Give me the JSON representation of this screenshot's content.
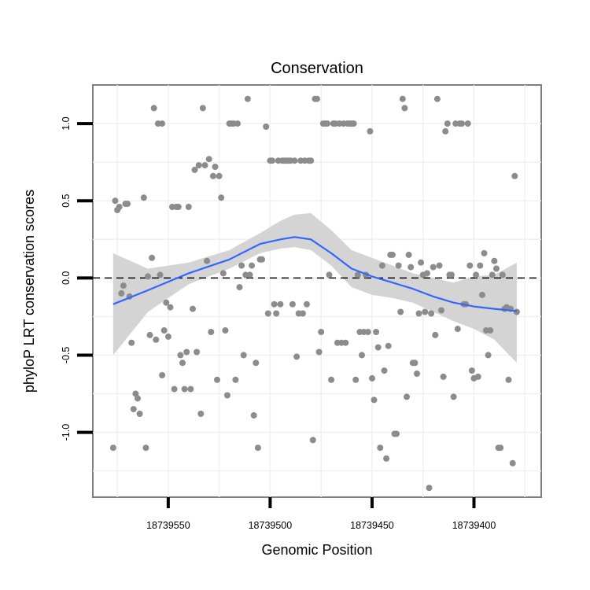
{
  "chart_data": {
    "type": "scatter",
    "title": "Conservation",
    "xlabel": "Genomic Position",
    "ylabel": "phyloP LRT conservation scores",
    "x_reversed": true,
    "xlim": [
      18739587,
      18739367
    ],
    "ylim": [
      -1.42,
      1.25
    ],
    "x_ticks": [
      18739550,
      18739500,
      18739450,
      18739400
    ],
    "x_tick_labels": [
      "18739550",
      "18739500",
      "18739450",
      "18739400"
    ],
    "y_ticks": [
      1.0,
      0.5,
      0.0,
      -0.5,
      -1.0
    ],
    "y_tick_labels": [
      "1.0",
      "0.5",
      "0.0",
      "-0.5",
      "-1.0"
    ],
    "reference_line": {
      "y": 0,
      "style": "dashed"
    },
    "grid": true,
    "point_color": "#8c8c8c",
    "smooth_color": "#3366ff",
    "band_color": "#d4d4d4",
    "points": [
      [
        18739577,
        -1.1
      ],
      [
        18739576,
        0.5
      ],
      [
        18739575,
        0.44
      ],
      [
        18739574,
        0.46
      ],
      [
        18739573,
        -0.1
      ],
      [
        18739572,
        -0.05
      ],
      [
        18739571,
        0.48
      ],
      [
        18739570,
        0.48
      ],
      [
        18739569,
        -0.12
      ],
      [
        18739568,
        -0.42
      ],
      [
        18739567,
        -0.85
      ],
      [
        18739566,
        -0.75
      ],
      [
        18739565,
        -0.78
      ],
      [
        18739564,
        -0.88
      ],
      [
        18739562,
        0.52
      ],
      [
        18739561,
        -1.1
      ],
      [
        18739560,
        0.01
      ],
      [
        18739559,
        -0.37
      ],
      [
        18739558,
        0.13
      ],
      [
        18739557,
        1.1
      ],
      [
        18739556,
        -0.4
      ],
      [
        18739555,
        1.0
      ],
      [
        18739554,
        0.02
      ],
      [
        18739553,
        -0.63
      ],
      [
        18739553,
        1.0
      ],
      [
        18739552,
        -0.34
      ],
      [
        18739551,
        -0.16
      ],
      [
        18739550,
        -0.38
      ],
      [
        18739549,
        -0.19
      ],
      [
        18739548,
        0.46
      ],
      [
        18739547,
        -0.72
      ],
      [
        18739546,
        0.46
      ],
      [
        18739545,
        0.46
      ],
      [
        18739544,
        -0.5
      ],
      [
        18739543,
        -0.55
      ],
      [
        18739542,
        -0.72
      ],
      [
        18739541,
        -0.48
      ],
      [
        18739540,
        0.46
      ],
      [
        18739539,
        -0.72
      ],
      [
        18739538,
        -0.2
      ],
      [
        18739537,
        0.7
      ],
      [
        18739536,
        -0.48
      ],
      [
        18739535,
        0.73
      ],
      [
        18739534,
        -0.88
      ],
      [
        18739533,
        1.1
      ],
      [
        18739532,
        0.73
      ],
      [
        18739531,
        0.11
      ],
      [
        18739530,
        0.77
      ],
      [
        18739529,
        -0.35
      ],
      [
        18739528,
        0.66
      ],
      [
        18739527,
        0.72
      ],
      [
        18739526,
        -0.66
      ],
      [
        18739525,
        0.66
      ],
      [
        18739524,
        0.52
      ],
      [
        18739523,
        0.03
      ],
      [
        18739522,
        -0.34
      ],
      [
        18739521,
        -0.76
      ],
      [
        18739520,
        1.0
      ],
      [
        18739519,
        1.0
      ],
      [
        18739518,
        1.0
      ],
      [
        18739517,
        -0.66
      ],
      [
        18739516,
        1.0
      ],
      [
        18739515,
        -0.06
      ],
      [
        18739514,
        0.08
      ],
      [
        18739513,
        -0.5
      ],
      [
        18739512,
        0.02
      ],
      [
        18739511,
        1.16
      ],
      [
        18739510,
        0.02
      ],
      [
        18739509,
        0.08
      ],
      [
        18739508,
        -0.89
      ],
      [
        18739507,
        -0.55
      ],
      [
        18739506,
        -1.1
      ],
      [
        18739505,
        0.12
      ],
      [
        18739504,
        0.12
      ],
      [
        18739502,
        0.98
      ],
      [
        18739501,
        -0.23
      ],
      [
        18739500,
        0.76
      ],
      [
        18739499,
        0.76
      ],
      [
        18739498,
        -0.17
      ],
      [
        18739497,
        -0.23
      ],
      [
        18739496,
        0.76
      ],
      [
        18739495,
        -0.17
      ],
      [
        18739494,
        0.76
      ],
      [
        18739493,
        0.76
      ],
      [
        18739492,
        0.76
      ],
      [
        18739491,
        0.76
      ],
      [
        18739490,
        0.76
      ],
      [
        18739489,
        -0.17
      ],
      [
        18739488,
        0.76
      ],
      [
        18739487,
        -0.51
      ],
      [
        18739486,
        -0.23
      ],
      [
        18739485,
        0.76
      ],
      [
        18739484,
        -0.23
      ],
      [
        18739483,
        0.76
      ],
      [
        18739482,
        -0.17
      ],
      [
        18739481,
        0.76
      ],
      [
        18739480,
        0.76
      ],
      [
        18739479,
        -1.05
      ],
      [
        18739478,
        1.16
      ],
      [
        18739477,
        1.16
      ],
      [
        18739476,
        -0.48
      ],
      [
        18739475,
        -0.35
      ],
      [
        18739474,
        1.0
      ],
      [
        18739473,
        1.0
      ],
      [
        18739472,
        1.0
      ],
      [
        18739471,
        0.02
      ],
      [
        18739470,
        -0.66
      ],
      [
        18739469,
        1.0
      ],
      [
        18739468,
        1.0
      ],
      [
        18739467,
        -0.42
      ],
      [
        18739466,
        1.0
      ],
      [
        18739465,
        -0.42
      ],
      [
        18739464,
        1.0
      ],
      [
        18739463,
        -0.42
      ],
      [
        18739462,
        1.0
      ],
      [
        18739461,
        1.0
      ],
      [
        18739460,
        1.0
      ],
      [
        18739459,
        1.0
      ],
      [
        18739458,
        -0.66
      ],
      [
        18739457,
        0.02
      ],
      [
        18739456,
        -0.35
      ],
      [
        18739455,
        -0.5
      ],
      [
        18739454,
        -0.35
      ],
      [
        18739453,
        0.02
      ],
      [
        18739452,
        -0.35
      ],
      [
        18739451,
        0.95
      ],
      [
        18739450,
        -0.65
      ],
      [
        18739449,
        -0.79
      ],
      [
        18739448,
        -0.35
      ],
      [
        18739447,
        -0.45
      ],
      [
        18739446,
        -1.1
      ],
      [
        18739445,
        0.08
      ],
      [
        18739444,
        -0.6
      ],
      [
        18739443,
        -1.17
      ],
      [
        18739442,
        -0.44
      ],
      [
        18739441,
        0.15
      ],
      [
        18739440,
        0.15
      ],
      [
        18739439,
        -1.01
      ],
      [
        18739438,
        -1.01
      ],
      [
        18739437,
        0.08
      ],
      [
        18739436,
        -0.22
      ],
      [
        18739435,
        1.16
      ],
      [
        18739434,
        1.1
      ],
      [
        18739433,
        -0.77
      ],
      [
        18739432,
        0.15
      ],
      [
        18739431,
        0.07
      ],
      [
        18739430,
        -0.55
      ],
      [
        18739429,
        -0.55
      ],
      [
        18739428,
        -0.62
      ],
      [
        18739427,
        -0.23
      ],
      [
        18739426,
        0.1
      ],
      [
        18739425,
        0.02
      ],
      [
        18739424,
        -0.22
      ],
      [
        18739423,
        0.03
      ],
      [
        18739422,
        -1.36
      ],
      [
        18739421,
        -0.23
      ],
      [
        18739420,
        0.07
      ],
      [
        18739419,
        -0.37
      ],
      [
        18739418,
        1.16
      ],
      [
        18739417,
        0.08
      ],
      [
        18739416,
        -0.21
      ],
      [
        18739415,
        -0.64
      ],
      [
        18739414,
        0.95
      ],
      [
        18739413,
        1.0
      ],
      [
        18739412,
        0.02
      ],
      [
        18739411,
        0.02
      ],
      [
        18739410,
        -0.77
      ],
      [
        18739409,
        1.0
      ],
      [
        18739408,
        -0.33
      ],
      [
        18739407,
        1.0
      ],
      [
        18739406,
        1.0
      ],
      [
        18739405,
        -0.17
      ],
      [
        18739404,
        -0.17
      ],
      [
        18739403,
        1.0
      ],
      [
        18739402,
        0.08
      ],
      [
        18739401,
        -0.6
      ],
      [
        18739400,
        -0.65
      ],
      [
        18739399,
        0.02
      ],
      [
        18739398,
        -0.64
      ],
      [
        18739397,
        0.08
      ],
      [
        18739396,
        -0.11
      ],
      [
        18739395,
        0.16
      ],
      [
        18739394,
        -0.34
      ],
      [
        18739393,
        -0.5
      ],
      [
        18739392,
        -0.34
      ],
      [
        18739391,
        0.02
      ],
      [
        18739390,
        0.11
      ],
      [
        18739389,
        0.06
      ],
      [
        18739388,
        -1.1
      ],
      [
        18739387,
        -1.1
      ],
      [
        18739386,
        0.02
      ],
      [
        18739385,
        -0.2
      ],
      [
        18739384,
        -0.19
      ],
      [
        18739383,
        -0.66
      ],
      [
        18739382,
        -0.2
      ],
      [
        18739381,
        -1.2
      ],
      [
        18739380,
        0.66
      ],
      [
        18739379,
        -0.22
      ]
    ],
    "smooth": {
      "x": [
        18739577,
        18739560,
        18739540,
        18739520,
        18739505,
        18739495,
        18739488,
        18739480,
        18739470,
        18739460,
        18739450,
        18739440,
        18739430,
        18739420,
        18739410,
        18739400,
        18739390,
        18739379
      ],
      "y": [
        -0.17,
        -0.08,
        0.03,
        0.12,
        0.22,
        0.25,
        0.265,
        0.25,
        0.16,
        0.06,
        0.01,
        -0.03,
        -0.07,
        -0.12,
        -0.16,
        -0.185,
        -0.2,
        -0.215
      ],
      "lower": [
        -0.5,
        -0.22,
        -0.04,
        0.06,
        0.16,
        0.19,
        0.2,
        0.18,
        0.08,
        -0.06,
        -0.11,
        -0.13,
        -0.16,
        -0.22,
        -0.28,
        -0.33,
        -0.4,
        -0.55
      ],
      "upper": [
        0.16,
        0.06,
        0.1,
        0.18,
        0.29,
        0.37,
        0.41,
        0.42,
        0.31,
        0.18,
        0.13,
        0.08,
        0.03,
        0.0,
        -0.03,
        0.01,
        0.02,
        0.1
      ]
    }
  }
}
